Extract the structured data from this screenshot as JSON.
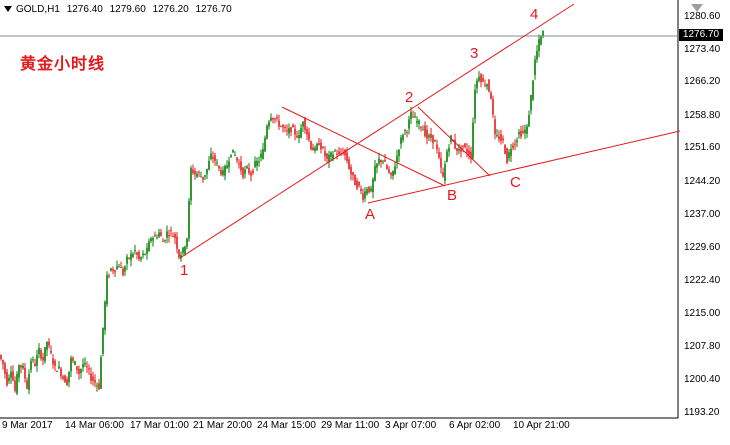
{
  "header": {
    "symbol": "GOLD,H1",
    "ohlc": [
      "1276.40",
      "1279.60",
      "1276.20",
      "1276.70"
    ]
  },
  "title": "黄金小时线",
  "current_price_label": "1276.70",
  "colors": {
    "bull": "#008000",
    "bear": "#e41a1c",
    "annotation": "#e41a1c",
    "price_line": "#7f8c8d"
  },
  "icons": {
    "dropdown": "triangle-down-icon",
    "chart_shift": "shift-arrow-icon"
  },
  "chart_data": {
    "type": "candlestick",
    "title": "黄金小时线",
    "x": [
      "9 Mar 2017",
      "14 Mar 06:00",
      "17 Mar 01:00",
      "21 Mar 20:00",
      "24 Mar 15:00",
      "29 Mar 11:00",
      "3 Apr 07:00",
      "6 Apr 02:00",
      "10 Apr 21:00"
    ],
    "y_ticks": [
      "1280.60",
      "1273.40",
      "1266.20",
      "1258.80",
      "1251.60",
      "1244.20",
      "1237.00",
      "1229.60",
      "1222.40",
      "1215.00",
      "1207.80",
      "1200.40",
      "1193.20"
    ],
    "ylim": [
      1193.2,
      1280.6
    ],
    "current_price": 1276.7,
    "path_points": [
      [
        0,
        1206
      ],
      [
        4,
        1204
      ],
      [
        8,
        1200
      ],
      [
        12,
        1203
      ],
      [
        16,
        1198
      ],
      [
        20,
        1204
      ],
      [
        24,
        1203
      ],
      [
        28,
        1199
      ],
      [
        32,
        1205
      ],
      [
        36,
        1204
      ],
      [
        40,
        1207
      ],
      [
        44,
        1205
      ],
      [
        48,
        1209
      ],
      [
        52,
        1206
      ],
      [
        56,
        1203
      ],
      [
        60,
        1203
      ],
      [
        64,
        1201
      ],
      [
        68,
        1200
      ],
      [
        72,
        1205
      ],
      [
        76,
        1204
      ],
      [
        80,
        1202
      ],
      [
        84,
        1204
      ],
      [
        88,
        1203
      ],
      [
        92,
        1201
      ],
      [
        96,
        1200
      ],
      [
        100,
        1199
      ],
      [
        104,
        1212
      ],
      [
        108,
        1223
      ],
      [
        112,
        1225
      ],
      [
        116,
        1225
      ],
      [
        120,
        1226
      ],
      [
        124,
        1224
      ],
      [
        128,
        1227
      ],
      [
        132,
        1228
      ],
      [
        136,
        1229
      ],
      [
        140,
        1227
      ],
      [
        144,
        1228
      ],
      [
        148,
        1229
      ],
      [
        152,
        1232
      ],
      [
        156,
        1232
      ],
      [
        160,
        1233
      ],
      [
        164,
        1231
      ],
      [
        168,
        1233
      ],
      [
        172,
        1233
      ],
      [
        176,
        1232
      ],
      [
        180,
        1228
      ],
      [
        184,
        1229
      ],
      [
        188,
        1232
      ],
      [
        192,
        1247
      ],
      [
        196,
        1246
      ],
      [
        200,
        1246
      ],
      [
        204,
        1245
      ],
      [
        208,
        1247
      ],
      [
        212,
        1250
      ],
      [
        216,
        1249
      ],
      [
        220,
        1247
      ],
      [
        224,
        1246
      ],
      [
        228,
        1248
      ],
      [
        232,
        1251
      ],
      [
        236,
        1250
      ],
      [
        240,
        1248
      ],
      [
        244,
        1246
      ],
      [
        248,
        1247
      ],
      [
        252,
        1246
      ],
      [
        256,
        1248
      ],
      [
        260,
        1249
      ],
      [
        264,
        1251
      ],
      [
        268,
        1257
      ],
      [
        272,
        1259
      ],
      [
        276,
        1258
      ],
      [
        280,
        1257
      ],
      [
        284,
        1256
      ],
      [
        288,
        1255
      ],
      [
        292,
        1256
      ],
      [
        296,
        1255
      ],
      [
        300,
        1254
      ],
      [
        304,
        1258
      ],
      [
        308,
        1255
      ],
      [
        312,
        1252
      ],
      [
        316,
        1251
      ],
      [
        320,
        1253
      ],
      [
        324,
        1251
      ],
      [
        328,
        1249
      ],
      [
        332,
        1250
      ],
      [
        336,
        1251
      ],
      [
        340,
        1250
      ],
      [
        344,
        1251
      ],
      [
        348,
        1249
      ],
      [
        352,
        1246
      ],
      [
        356,
        1244
      ],
      [
        360,
        1243
      ],
      [
        364,
        1241
      ],
      [
        368,
        1243
      ],
      [
        372,
        1242
      ],
      [
        376,
        1247
      ],
      [
        380,
        1249
      ],
      [
        384,
        1249
      ],
      [
        388,
        1247
      ],
      [
        392,
        1245
      ],
      [
        396,
        1248
      ],
      [
        400,
        1252
      ],
      [
        404,
        1255
      ],
      [
        408,
        1256
      ],
      [
        412,
        1259
      ],
      [
        416,
        1258
      ],
      [
        420,
        1257
      ],
      [
        424,
        1256
      ],
      [
        428,
        1254
      ],
      [
        432,
        1254
      ],
      [
        436,
        1253
      ],
      [
        440,
        1249
      ],
      [
        444,
        1245
      ],
      [
        448,
        1251
      ],
      [
        452,
        1254
      ],
      [
        456,
        1252
      ],
      [
        460,
        1251
      ],
      [
        464,
        1252
      ],
      [
        468,
        1251
      ],
      [
        472,
        1250
      ],
      [
        476,
        1265
      ],
      [
        480,
        1268
      ],
      [
        484,
        1266
      ],
      [
        488,
        1266
      ],
      [
        492,
        1263
      ],
      [
        496,
        1254
      ],
      [
        500,
        1254
      ],
      [
        504,
        1253
      ],
      [
        508,
        1249
      ],
      [
        512,
        1252
      ],
      [
        516,
        1253
      ],
      [
        520,
        1255
      ],
      [
        524,
        1255
      ],
      [
        528,
        1256
      ],
      [
        532,
        1263
      ],
      [
        536,
        1271
      ],
      [
        540,
        1275
      ],
      [
        544,
        1277
      ]
    ]
  },
  "wave_labels": [
    "1",
    "2",
    "3",
    "4",
    "A",
    "B",
    "C"
  ]
}
